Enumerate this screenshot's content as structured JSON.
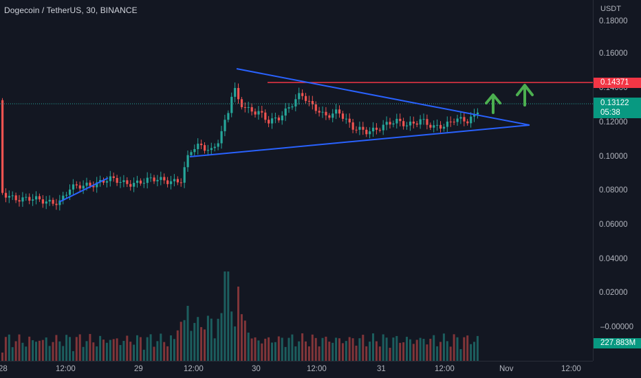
{
  "header": {
    "symbol_title": "Dogecoin / TetherUS, 30, BINANCE"
  },
  "price_scale": {
    "currency": "USDT",
    "labels": [
      "0.18000",
      "0.16000",
      "0.14000",
      "0.12000",
      "0.10000",
      "0.08000",
      "0.06000",
      "0.04000",
      "0.02000",
      "–0.00000"
    ],
    "horizontal_line_price": "0.14371",
    "last_price": "0.13122",
    "countdown": "05:38",
    "volume_value": "227.883M"
  },
  "time_scale": {
    "labels": [
      "28",
      "12:00",
      "29",
      "12:00",
      "30",
      "12:00",
      "31",
      "12:00",
      "Nov",
      "12:00"
    ]
  },
  "colors": {
    "up": "#26a69a",
    "down": "#ef5350",
    "trendline": "#2962ff",
    "level_line": "#f23645",
    "arrow": "#4caf50",
    "background": "#131722"
  },
  "drawings": {
    "level_line_price": 0.14371,
    "arrows": 2,
    "arrow_icon": "arrow-up-icon"
  }
}
